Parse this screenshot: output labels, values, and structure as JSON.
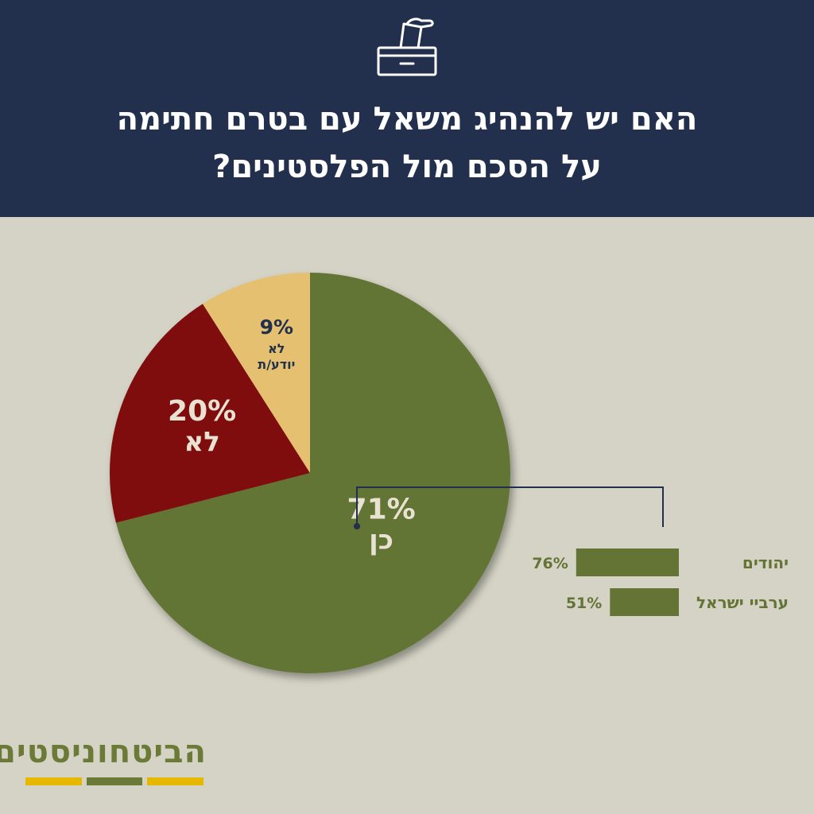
{
  "header": {
    "icon": "ballot-box-icon",
    "title_lines": [
      "האם יש להנהיג משאל עם בטרם חתימה",
      "על הסכם מול הפלסטינים?"
    ]
  },
  "colors": {
    "header_bg": "#22304d",
    "page_bg": "#d4d3c5",
    "yes": "#637434",
    "no": "#7f0c0c",
    "dont_know": "#e4c06f",
    "breakdown_bar": "#637434",
    "connector": "#22304d",
    "logo_text": "#6b7a36",
    "logo_accent": "#e6b800"
  },
  "chart_data": [
    {
      "type": "pie",
      "slices": [
        {
          "label": "כן",
          "value": 71,
          "value_text": "71%",
          "color": "#637434"
        },
        {
          "label": "לא",
          "value": 20,
          "value_text": "20%",
          "color": "#7f0c0c"
        },
        {
          "label": "לא יודע/ת",
          "label_lines": [
            "לא",
            "יודע/ת"
          ],
          "value": 9,
          "value_text": "9%",
          "color": "#e4c06f"
        }
      ]
    },
    {
      "type": "bar",
      "orientation": "horizontal",
      "categories": [
        "יהודים",
        "ערביי ישראל"
      ],
      "values": [
        76,
        51
      ],
      "value_labels": [
        "76%",
        "51%"
      ],
      "xlim": [
        0,
        100
      ]
    }
  ],
  "logo": {
    "text": "הביטחוניסטים",
    "bar_colors": [
      "#e6b800",
      "#6b7a36",
      "#e6b800"
    ]
  }
}
